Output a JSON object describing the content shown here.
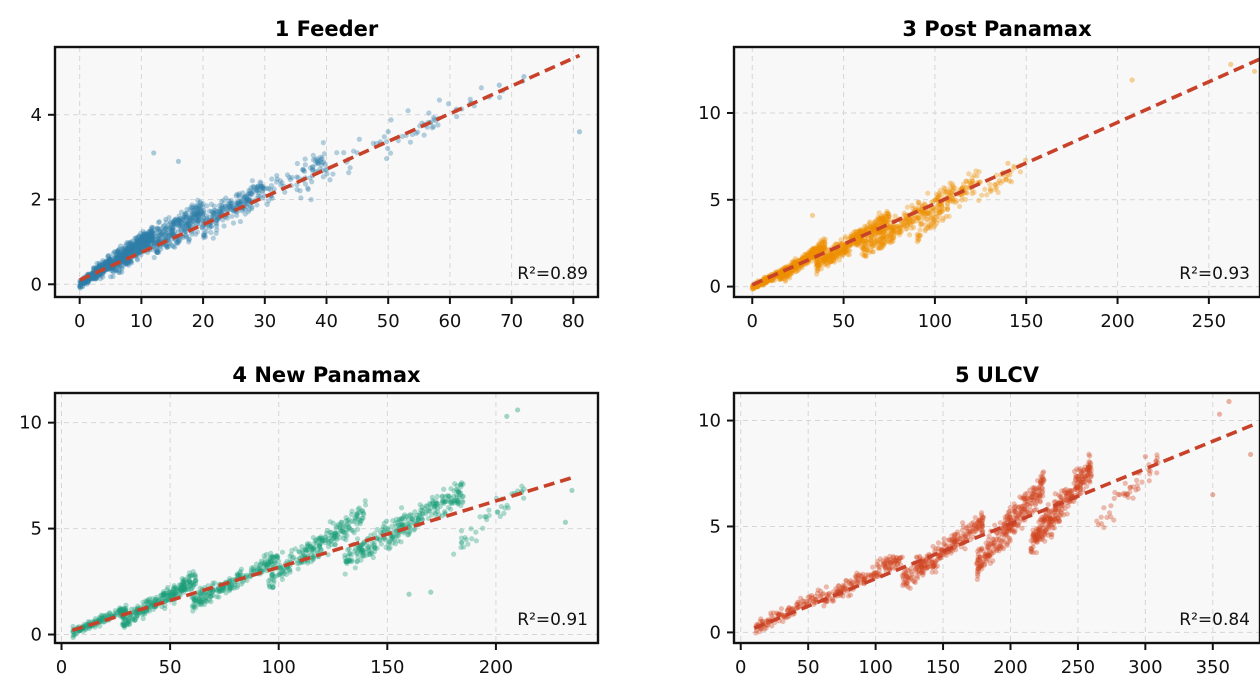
{
  "chart_data": [
    {
      "type": "scatter",
      "title": "1 Feeder",
      "xlabel": "",
      "ylabel": "",
      "xlim": [
        -4,
        84
      ],
      "ylim": [
        -0.3,
        5.6
      ],
      "xticks": [
        0,
        10,
        20,
        30,
        40,
        50,
        60,
        70,
        80
      ],
      "yticks": [
        0,
        2,
        4
      ],
      "grid": true,
      "annotation": "R²=0.89",
      "color": "#2e7fa8",
      "fit_line": {
        "x": [
          0,
          81
        ],
        "y": [
          0.1,
          5.4
        ],
        "color": "#c8422a"
      },
      "clusters": [
        {
          "x": [
            0,
            5
          ],
          "y": [
            0.0,
            0.5
          ],
          "n": 300
        },
        {
          "x": [
            2,
            12
          ],
          "y": [
            0.2,
            1.2
          ],
          "n": 420
        },
        {
          "x": [
            5,
            20
          ],
          "y": [
            0.4,
            1.8
          ],
          "n": 380
        },
        {
          "x": [
            12,
            30
          ],
          "y": [
            0.8,
            2.3
          ],
          "n": 260
        },
        {
          "x": [
            20,
            40
          ],
          "y": [
            1.3,
            3.0
          ],
          "n": 130
        },
        {
          "x": [
            35,
            60
          ],
          "y": [
            2.2,
            4.2
          ],
          "n": 55
        },
        {
          "x": [
            55,
            72
          ],
          "y": [
            3.5,
            5.0
          ],
          "n": 22
        }
      ],
      "outliers": [
        {
          "x": 12,
          "y": 3.1
        },
        {
          "x": 16,
          "y": 2.9
        },
        {
          "x": 72,
          "y": 4.9
        },
        {
          "x": 81,
          "y": 3.6
        },
        {
          "x": 68,
          "y": 4.7
        },
        {
          "x": 50,
          "y": 3.6
        }
      ]
    },
    {
      "type": "scatter",
      "title": "3 Post Panamax",
      "xlabel": "",
      "ylabel": "",
      "xlim": [
        -10,
        278
      ],
      "ylim": [
        -0.6,
        13.8
      ],
      "xticks": [
        0,
        50,
        100,
        150,
        200,
        250
      ],
      "yticks": [
        0,
        5,
        10
      ],
      "grid": true,
      "annotation": "R²=0.93",
      "color": "#ee8e00",
      "fit_line": {
        "x": [
          0,
          280
        ],
        "y": [
          0.1,
          13.2
        ],
        "color": "#c8422a"
      },
      "clusters": [
        {
          "x": [
            0,
            20
          ],
          "y": [
            0.0,
            1.0
          ],
          "n": 220
        },
        {
          "x": [
            15,
            40
          ],
          "y": [
            0.5,
            2.4
          ],
          "n": 330
        },
        {
          "x": [
            35,
            75
          ],
          "y": [
            1.2,
            4.0
          ],
          "n": 400
        },
        {
          "x": [
            60,
            110
          ],
          "y": [
            2.0,
            5.5
          ],
          "n": 300
        },
        {
          "x": [
            90,
            125
          ],
          "y": [
            3.0,
            6.5
          ],
          "n": 120
        },
        {
          "x": [
            120,
            150
          ],
          "y": [
            4.8,
            7.2
          ],
          "n": 35
        }
      ],
      "outliers": [
        {
          "x": 33,
          "y": 4.1
        },
        {
          "x": 208,
          "y": 11.9
        },
        {
          "x": 262,
          "y": 12.8
        },
        {
          "x": 275,
          "y": 12.4
        },
        {
          "x": 140,
          "y": 7.1
        }
      ]
    },
    {
      "type": "scatter",
      "title": "4 New Panamax",
      "xlabel": "",
      "ylabel": "",
      "xlim": [
        -3,
        247
      ],
      "ylim": [
        -0.4,
        11.4
      ],
      "xticks": [
        0,
        50,
        100,
        150,
        200
      ],
      "yticks": [
        0,
        5,
        10
      ],
      "grid": true,
      "annotation": "R²=0.91",
      "color": "#1a9e77",
      "fit_line": {
        "x": [
          5,
          235
        ],
        "y": [
          0.2,
          7.4
        ],
        "color": "#c8422a"
      },
      "clusters": [
        {
          "x": [
            5,
            30
          ],
          "y": [
            0.1,
            1.2
          ],
          "n": 140
        },
        {
          "x": [
            28,
            62
          ],
          "y": [
            0.6,
            2.6
          ],
          "n": 260
        },
        {
          "x": [
            60,
            100
          ],
          "y": [
            1.5,
            3.6
          ],
          "n": 220
        },
        {
          "x": [
            95,
            140
          ],
          "y": [
            2.5,
            5.8
          ],
          "n": 240
        },
        {
          "x": [
            130,
            185
          ],
          "y": [
            3.5,
            6.8
          ],
          "n": 300
        },
        {
          "x": [
            180,
            215
          ],
          "y": [
            4.0,
            7.0
          ],
          "n": 40
        }
      ],
      "outliers": [
        {
          "x": 210,
          "y": 10.6
        },
        {
          "x": 205,
          "y": 10.3
        },
        {
          "x": 160,
          "y": 1.9
        },
        {
          "x": 170,
          "y": 2.0
        },
        {
          "x": 235,
          "y": 6.8
        },
        {
          "x": 232,
          "y": 5.3
        }
      ]
    },
    {
      "type": "scatter",
      "title": "5 ULCV",
      "xlabel": "",
      "ylabel": "",
      "xlim": [
        -5,
        385
      ],
      "ylim": [
        -0.5,
        11.3
      ],
      "xticks": [
        0,
        50,
        100,
        150,
        200,
        250,
        300,
        350
      ],
      "yticks": [
        0,
        5,
        10
      ],
      "grid": true,
      "annotation": "R²=0.84",
      "color": "#d24420",
      "fit_line": {
        "x": [
          10,
          380
        ],
        "y": [
          0.2,
          9.8
        ],
        "color": "#c8422a"
      },
      "clusters": [
        {
          "x": [
            10,
            60
          ],
          "y": [
            0.2,
            1.8
          ],
          "n": 110
        },
        {
          "x": [
            60,
            120
          ],
          "y": [
            1.5,
            3.6
          ],
          "n": 170
        },
        {
          "x": [
            120,
            180
          ],
          "y": [
            2.4,
            5.2
          ],
          "n": 260
        },
        {
          "x": [
            175,
            225
          ],
          "y": [
            3.2,
            7.0
          ],
          "n": 300
        },
        {
          "x": [
            215,
            260
          ],
          "y": [
            4.2,
            7.8
          ],
          "n": 300
        },
        {
          "x": [
            260,
            310
          ],
          "y": [
            4.8,
            8.2
          ],
          "n": 45
        }
      ],
      "outliers": [
        {
          "x": 362,
          "y": 10.9
        },
        {
          "x": 355,
          "y": 10.3
        },
        {
          "x": 378,
          "y": 8.4
        },
        {
          "x": 350,
          "y": 6.5
        },
        {
          "x": 300,
          "y": 8.3
        }
      ]
    }
  ]
}
